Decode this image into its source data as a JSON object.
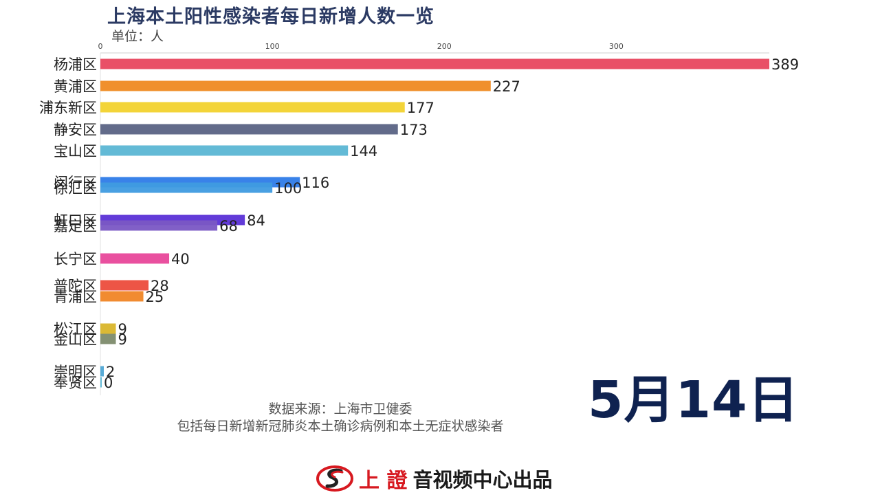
{
  "title": "上海本土阳性感染者每日新增人数一览",
  "unit_label": "单位：人",
  "date_label": "5月14日",
  "source_line1": "数据来源：上海市卫健委",
  "source_line2": "包括每日新增新冠肺炎本土确诊病例和本土无症状感染者",
  "footer": {
    "brand": "上 證",
    "text": "音视频中心出品",
    "logo_icon": "swirl-logo-icon"
  },
  "chart_data": {
    "type": "bar",
    "orientation": "horizontal",
    "categories": [
      "杨浦区",
      "黄浦区",
      "浦东新区",
      "静安区",
      "宝山区",
      "闵行区",
      "徐汇区",
      "虹口区",
      "嘉定区",
      "长宁区",
      "普陀区",
      "青浦区",
      "松江区",
      "金山区",
      "崇明区",
      "奉贤区"
    ],
    "values": [
      389,
      227,
      177,
      173,
      144,
      116,
      100,
      84,
      68,
      40,
      28,
      25,
      9,
      9,
      2,
      0
    ],
    "colors": [
      "#e8475f",
      "#ef8a22",
      "#f2d22e",
      "#5a6384",
      "#5bb6d4",
      "#2e7be8",
      "#3f9be0",
      "#5a30d6",
      "#7a57c4",
      "#e8479a",
      "#ec4c3c",
      "#f08525",
      "#d9b52a",
      "#7d8b6c",
      "#4fa7d4",
      "#5bb6d4"
    ],
    "x_ticks": [
      0,
      100,
      200,
      300
    ],
    "xlim": [
      0,
      389
    ],
    "grid": false
  }
}
